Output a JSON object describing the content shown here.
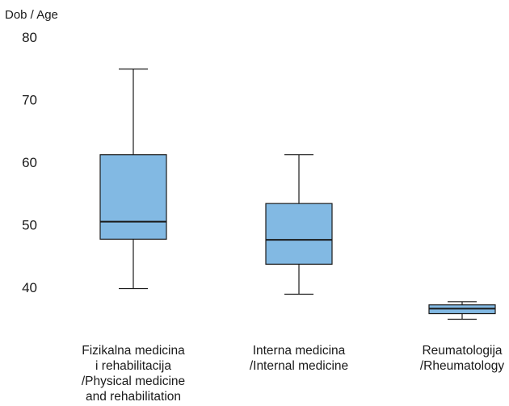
{
  "chart_data": {
    "type": "boxplot",
    "ylabel": "Dob / Age",
    "ylim": [
      35,
      80
    ],
    "yticks": [
      40,
      50,
      60,
      70,
      80
    ],
    "grid": false,
    "categories": [
      [
        "Fizikalna medicina",
        "i rehabilitacija",
        "/Physical medicine",
        "and rehabilitation"
      ],
      [
        "Interna medicina",
        "/Internal medicine"
      ],
      [
        "Reumatologija",
        "/Rheumatology"
      ]
    ],
    "boxes": [
      {
        "min": 39.8,
        "q1": 47.7,
        "median": 50.5,
        "q3": 61.2,
        "max": 74.9
      },
      {
        "min": 38.9,
        "q1": 43.7,
        "median": 47.6,
        "q3": 53.4,
        "max": 61.2
      },
      {
        "min": 34.9,
        "q1": 35.8,
        "median": 36.6,
        "q3": 37.2,
        "max": 37.7
      }
    ],
    "box_color": "#82b9e3"
  }
}
